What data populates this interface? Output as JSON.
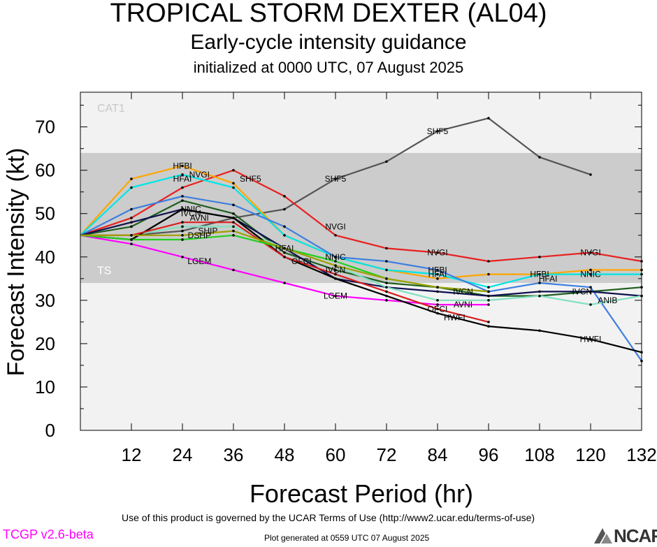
{
  "header": {
    "title": "TROPICAL STORM DEXTER (AL04)",
    "subtitle": "Early-cycle intensity guidance",
    "init": "initialized at 0000 UTC, 07 August 2025"
  },
  "footer": {
    "terms": "Use of this product is governed by the UCAR Terms of Use (http://www2.ucar.edu/terms-of-use)",
    "generated": "Plot generated at 0559 UTC   07 August 2025",
    "version": "TCGP v2.6-beta",
    "logo_text": "NCAR"
  },
  "chart_data": {
    "type": "line",
    "xlabel": "Forecast Period (hr)",
    "ylabel": "Forecast Intensity (kt)",
    "xlim": [
      0,
      132
    ],
    "ylim": [
      0,
      78
    ],
    "xticks": [
      12,
      24,
      36,
      48,
      60,
      72,
      84,
      96,
      108,
      120,
      132
    ],
    "yticks": [
      0,
      10,
      20,
      30,
      40,
      50,
      60,
      70
    ],
    "category_bands": [
      {
        "label": "TS",
        "from": 34,
        "to": 64,
        "color": "#cccccc"
      },
      {
        "label": "CAT1",
        "from": 64,
        "to": 83,
        "color": "#f2f2f2"
      }
    ],
    "series": [
      {
        "name": "SHF5",
        "color": "#555555",
        "label_at": [
          [
            40,
            58
          ],
          [
            60,
            58
          ],
          [
            84,
            69
          ]
        ],
        "points": [
          [
            0,
            45
          ],
          [
            12,
            45
          ],
          [
            24,
            46
          ],
          [
            36,
            49
          ],
          [
            48,
            51
          ],
          [
            60,
            58
          ],
          [
            72,
            62
          ],
          [
            84,
            69
          ],
          [
            96,
            72
          ],
          [
            108,
            63
          ],
          [
            120,
            59
          ]
        ]
      },
      {
        "name": "NVGI",
        "color": "#e82020",
        "label_at": [
          [
            28,
            59
          ],
          [
            60,
            47
          ],
          [
            84,
            41
          ],
          [
            120,
            41
          ]
        ],
        "points": [
          [
            0,
            45
          ],
          [
            12,
            49
          ],
          [
            24,
            56
          ],
          [
            36,
            60
          ],
          [
            48,
            54
          ],
          [
            60,
            45
          ],
          [
            72,
            42
          ],
          [
            84,
            41
          ],
          [
            96,
            39
          ],
          [
            108,
            40
          ],
          [
            120,
            41
          ],
          [
            132,
            39
          ]
        ]
      },
      {
        "name": "HFBI",
        "color": "#ffa500",
        "label_at": [
          [
            24,
            61
          ],
          [
            84,
            37
          ],
          [
            108,
            36
          ]
        ],
        "points": [
          [
            0,
            45
          ],
          [
            12,
            58
          ],
          [
            24,
            61
          ],
          [
            36,
            57
          ],
          [
            48,
            45
          ],
          [
            60,
            40
          ],
          [
            72,
            37
          ],
          [
            84,
            35
          ],
          [
            96,
            36
          ],
          [
            108,
            36
          ],
          [
            120,
            37
          ],
          [
            132,
            37
          ]
        ]
      },
      {
        "name": "HFAI",
        "color": "#00e5e5",
        "label_at": [
          [
            24,
            58
          ],
          [
            48,
            42
          ],
          [
            84,
            36
          ],
          [
            110,
            35
          ]
        ],
        "points": [
          [
            0,
            45
          ],
          [
            12,
            56
          ],
          [
            24,
            59
          ],
          [
            36,
            56
          ],
          [
            48,
            45
          ],
          [
            60,
            40
          ],
          [
            72,
            37
          ],
          [
            84,
            36
          ],
          [
            96,
            33
          ],
          [
            108,
            36
          ],
          [
            120,
            36
          ],
          [
            132,
            36
          ]
        ]
      },
      {
        "name": "NNIC",
        "color": "#3f7fdf",
        "label_at": [
          [
            26,
            51
          ],
          [
            60,
            40
          ],
          [
            120,
            36
          ]
        ],
        "points": [
          [
            0,
            45
          ],
          [
            12,
            51
          ],
          [
            24,
            54
          ],
          [
            36,
            52
          ],
          [
            48,
            47
          ],
          [
            60,
            40
          ],
          [
            72,
            39
          ],
          [
            84,
            37
          ],
          [
            96,
            32
          ],
          [
            108,
            34
          ],
          [
            120,
            33
          ],
          [
            132,
            16
          ]
        ]
      },
      {
        "name": "IVCN",
        "color": "#1f5f1f",
        "label_at": [
          [
            26,
            50
          ],
          [
            60,
            37
          ],
          [
            90,
            32
          ],
          [
            118,
            32
          ]
        ],
        "points": [
          [
            0,
            45
          ],
          [
            12,
            47
          ],
          [
            24,
            53
          ],
          [
            36,
            50
          ],
          [
            48,
            41
          ],
          [
            60,
            37
          ],
          [
            72,
            34
          ],
          [
            84,
            33
          ],
          [
            96,
            31
          ],
          [
            108,
            31
          ],
          [
            120,
            32
          ],
          [
            132,
            33
          ]
        ]
      },
      {
        "name": "AVNI",
        "color": "#101050",
        "label_at": [
          [
            28,
            49
          ],
          [
            90,
            29
          ]
        ],
        "points": [
          [
            0,
            45
          ],
          [
            12,
            48
          ],
          [
            24,
            51
          ],
          [
            36,
            49
          ],
          [
            48,
            42
          ],
          [
            60,
            35
          ],
          [
            72,
            33
          ],
          [
            84,
            32
          ],
          [
            96,
            31
          ],
          [
            108,
            32
          ],
          [
            120,
            32
          ],
          [
            132,
            31
          ]
        ]
      },
      {
        "name": "ANIB",
        "color": "#80e0c0",
        "label_at": [
          [
            124,
            30
          ]
        ],
        "points": [
          [
            0,
            45
          ],
          [
            12,
            45
          ],
          [
            24,
            47
          ],
          [
            36,
            47
          ],
          [
            48,
            42
          ],
          [
            60,
            38
          ],
          [
            72,
            33
          ],
          [
            84,
            30
          ],
          [
            96,
            30
          ],
          [
            108,
            31
          ],
          [
            120,
            29
          ],
          [
            132,
            31
          ]
        ]
      },
      {
        "name": "LGEM",
        "color": "#ff00ff",
        "label_at": [
          [
            28,
            39
          ],
          [
            60,
            31
          ]
        ],
        "points": [
          [
            0,
            45
          ],
          [
            12,
            43
          ],
          [
            24,
            40
          ],
          [
            36,
            37
          ],
          [
            48,
            34
          ],
          [
            60,
            31
          ],
          [
            72,
            30
          ],
          [
            84,
            29
          ],
          [
            96,
            29
          ]
        ]
      },
      {
        "name": "HWFI",
        "color": "#000000",
        "label_at": [
          [
            88,
            26
          ],
          [
            120,
            21
          ]
        ],
        "points": [
          [
            0,
            45
          ],
          [
            12,
            44
          ],
          [
            24,
            51
          ],
          [
            36,
            49
          ],
          [
            48,
            40
          ],
          [
            60,
            35
          ],
          [
            72,
            31
          ],
          [
            84,
            27
          ],
          [
            96,
            24
          ],
          [
            108,
            23
          ],
          [
            120,
            21
          ],
          [
            132,
            18
          ]
        ]
      },
      {
        "name": "OFCI",
        "color": "#d91f1f",
        "label_at": [
          [
            52,
            39
          ],
          [
            84,
            28
          ]
        ],
        "points": [
          [
            0,
            45
          ],
          [
            12,
            45
          ],
          [
            24,
            48
          ],
          [
            36,
            48
          ],
          [
            48,
            40
          ],
          [
            60,
            36
          ],
          [
            72,
            32
          ],
          [
            84,
            28
          ],
          [
            96,
            25
          ]
        ]
      },
      {
        "name": "DSHP",
        "color": "#20d020",
        "label_at": [
          [
            28,
            45
          ]
        ],
        "points": [
          [
            0,
            45
          ],
          [
            12,
            44
          ],
          [
            24,
            44
          ],
          [
            36,
            45
          ],
          [
            48,
            42
          ],
          [
            60,
            39
          ],
          [
            72,
            35
          ],
          [
            84,
            33
          ],
          [
            96,
            32
          ]
        ]
      },
      {
        "name": "SHIP",
        "color": "#a0a000",
        "label_at": [
          [
            30,
            46
          ]
        ],
        "points": [
          [
            0,
            45
          ],
          [
            12,
            45
          ],
          [
            24,
            45
          ],
          [
            36,
            46
          ],
          [
            48,
            42
          ],
          [
            60,
            38
          ],
          [
            72,
            35
          ],
          [
            84,
            33
          ],
          [
            96,
            32
          ]
        ]
      }
    ]
  }
}
